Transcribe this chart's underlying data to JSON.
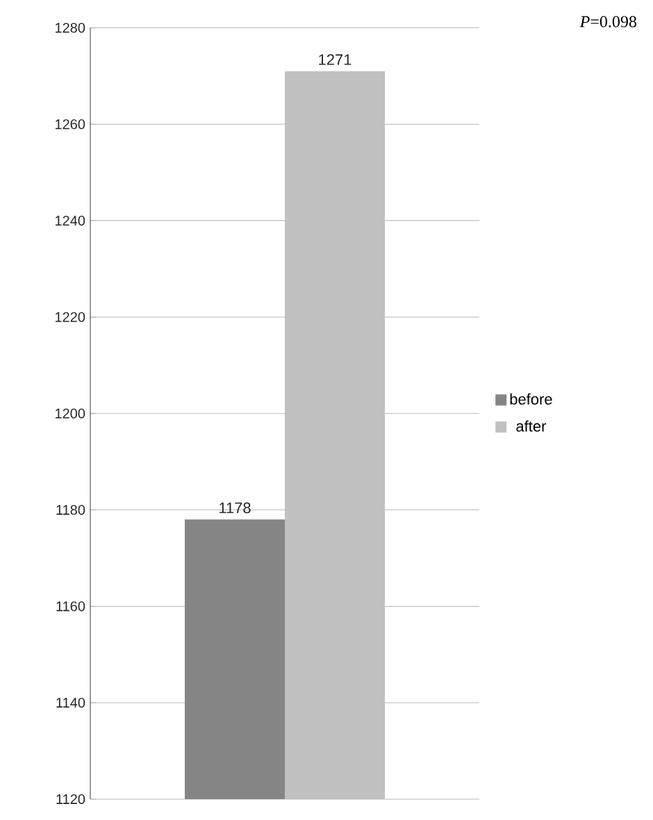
{
  "chart_data": {
    "type": "bar",
    "categories": [
      null
    ],
    "series": [
      {
        "name": "before",
        "color": "#858585",
        "values": [
          1178
        ]
      },
      {
        "name": "after",
        "color": "#c0c0c0",
        "values": [
          1271
        ]
      }
    ],
    "ylim": [
      1120,
      1280
    ],
    "yticks": [
      1120,
      1140,
      1160,
      1180,
      1200,
      1220,
      1240,
      1260,
      1280
    ],
    "grid": "y",
    "legend": "right",
    "data_labels": true,
    "annotations": [
      "*P*=0.098"
    ]
  }
}
